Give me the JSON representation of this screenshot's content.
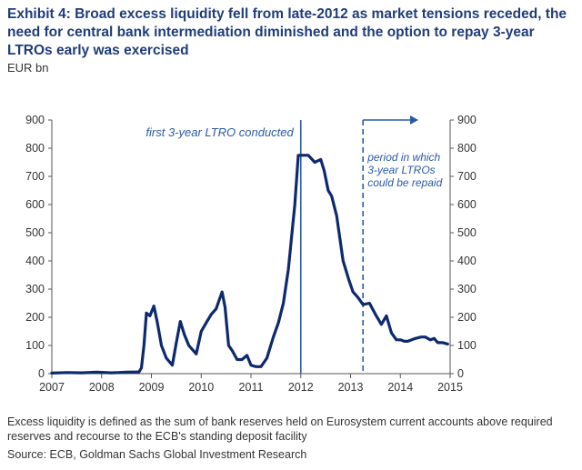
{
  "title": "Exhibit 4: Broad excess liquidity fell from late-2012 as market tensions receded, the need for central bank intermediation diminished and the option to repay 3-year LTROs early was exercised",
  "unit": "EUR bn",
  "note": "Excess liquidity is defined as the sum of bank reserves held on Eurosystem current accounts above required reserves and recourse to the ECB's standing deposit facility",
  "source": "Source: ECB, Goldman Sachs Global Investment Research",
  "colors": {
    "series": "#0d2a6e",
    "annotation": "#2b5aa6",
    "axis": "#555555"
  },
  "chart_data": {
    "type": "line",
    "xlim": [
      2007,
      2015
    ],
    "ylim": [
      0,
      900
    ],
    "xticks": [
      2007,
      2008,
      2009,
      2010,
      2011,
      2012,
      2013,
      2014,
      2015
    ],
    "yticks": [
      0,
      100,
      200,
      300,
      400,
      500,
      600,
      700,
      800,
      900
    ],
    "grid": false,
    "legend": "none",
    "series": [
      {
        "x": [
          2007.0,
          2007.3,
          2007.6,
          2007.9,
          2008.2,
          2008.5,
          2008.75,
          2008.8,
          2008.85,
          2008.9,
          2008.97,
          2009.05,
          2009.12,
          2009.2,
          2009.3,
          2009.42,
          2009.5,
          2009.58,
          2009.66,
          2009.75,
          2009.9,
          2010.0,
          2010.1,
          2010.2,
          2010.3,
          2010.35,
          2010.42,
          2010.48,
          2010.55,
          2010.63,
          2010.72,
          2010.82,
          2010.92,
          2011.0,
          2011.1,
          2011.2,
          2011.32,
          2011.45,
          2011.55,
          2011.65,
          2011.75,
          2011.88,
          2011.95,
          2012.05,
          2012.15,
          2012.28,
          2012.4,
          2012.47,
          2012.55,
          2012.62,
          2012.72,
          2012.85,
          2012.97,
          2013.05,
          2013.15,
          2013.25,
          2013.38,
          2013.5,
          2013.62,
          2013.72,
          2013.82,
          2013.92,
          2014.0,
          2014.08,
          2014.15,
          2014.3,
          2014.42,
          2014.5,
          2014.6,
          2014.68,
          2014.75,
          2014.85,
          2014.95
        ],
        "y": [
          2,
          4,
          3,
          5,
          3,
          5,
          6,
          20,
          100,
          215,
          205,
          240,
          180,
          100,
          55,
          30,
          110,
          185,
          140,
          100,
          70,
          150,
          180,
          210,
          230,
          255,
          290,
          235,
          100,
          80,
          50,
          50,
          65,
          30,
          25,
          25,
          55,
          130,
          180,
          250,
          370,
          600,
          775,
          775,
          775,
          750,
          760,
          720,
          650,
          630,
          560,
          400,
          330,
          290,
          270,
          245,
          250,
          210,
          175,
          205,
          145,
          120,
          120,
          115,
          115,
          125,
          130,
          130,
          120,
          125,
          110,
          110,
          105
        ]
      }
    ],
    "annotations": [
      {
        "text": "first 3-year LTRO conducted",
        "x": 2012.0,
        "style": "solid"
      },
      {
        "lines": [
          "period in which",
          "3-year LTROs",
          "could be repaid"
        ],
        "x": 2013.25,
        "style": "dashed",
        "arrow": "right"
      }
    ]
  }
}
